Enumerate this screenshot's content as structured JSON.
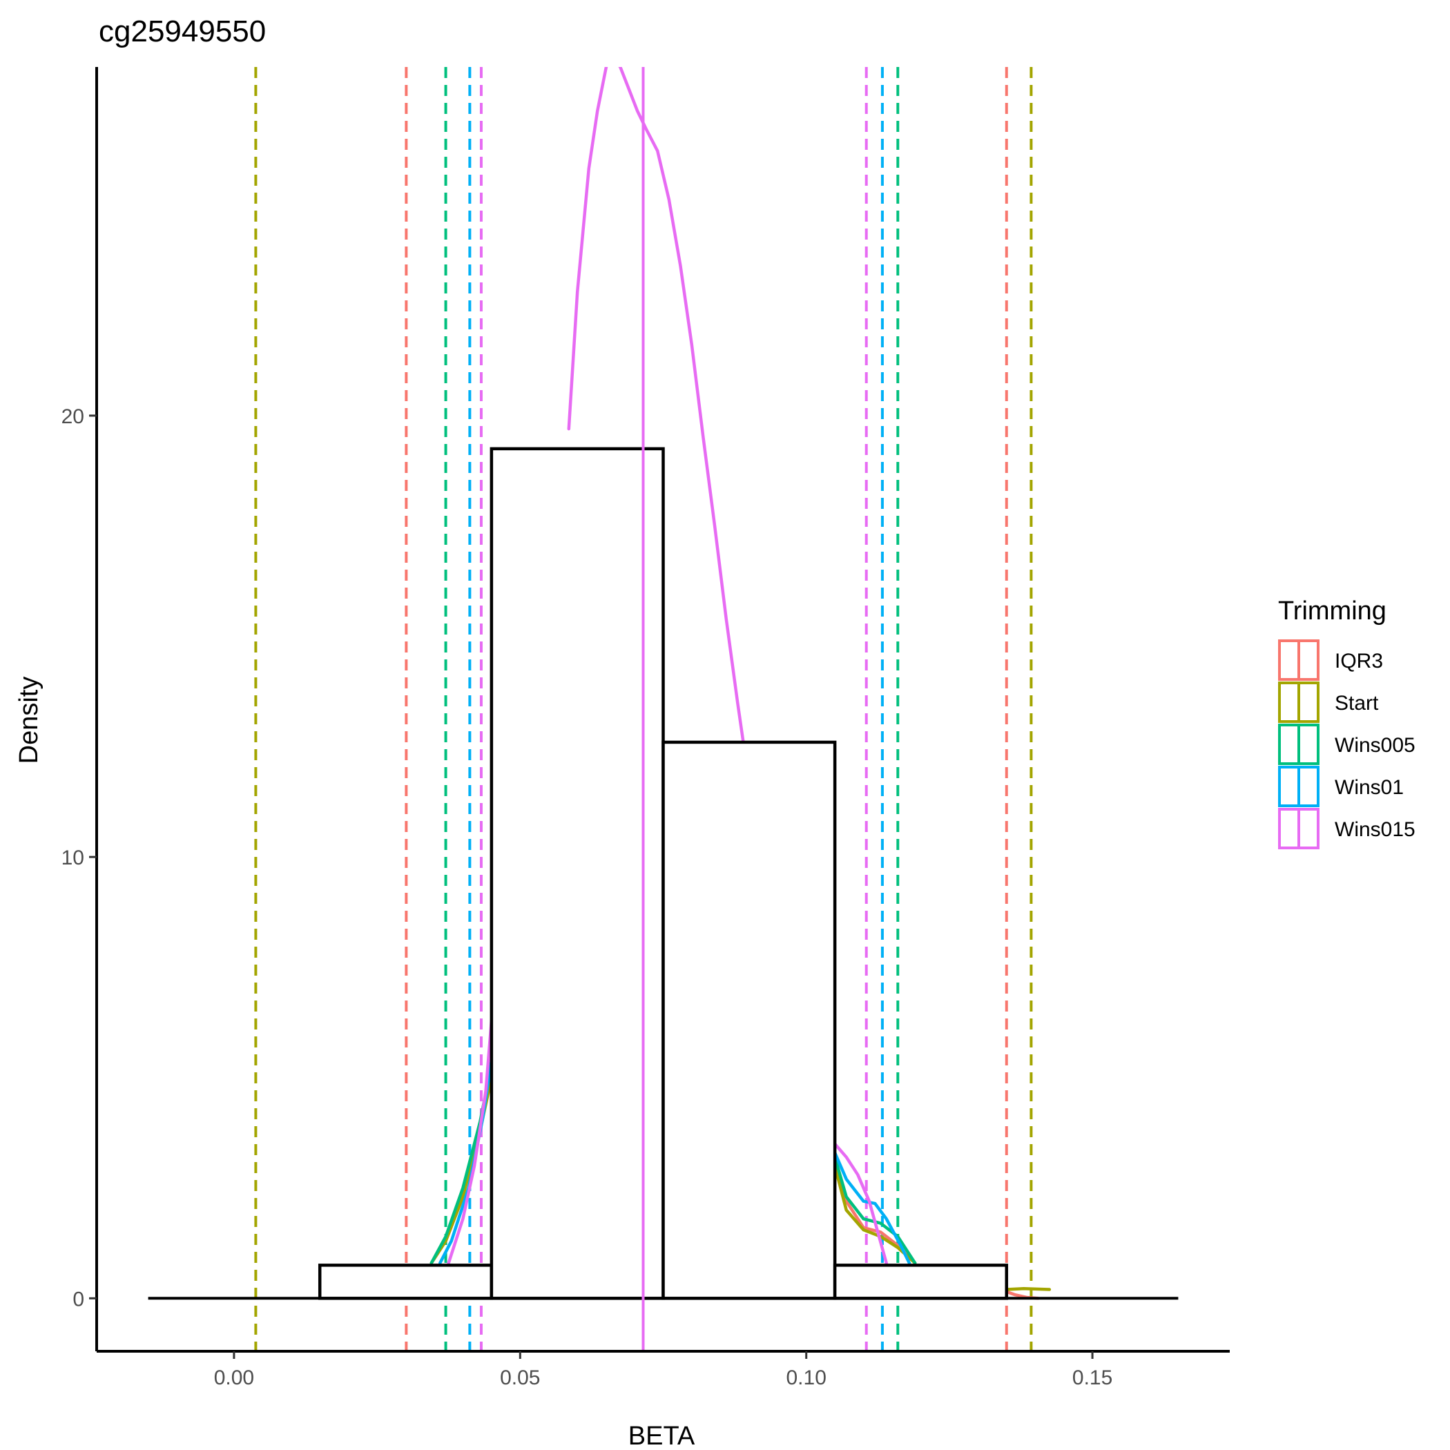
{
  "chart_data": {
    "type": "histogram",
    "title": "cg25949550",
    "xlabel": "BETA",
    "ylabel": "Density",
    "xlim": [
      -0.024,
      0.174
    ],
    "ylim": [
      -1.2,
      27.9
    ],
    "x_ticks": [
      {
        "value": 0.0,
        "label": "0.00"
      },
      {
        "value": 0.05,
        "label": "0.05"
      },
      {
        "value": 0.1,
        "label": "0.10"
      },
      {
        "value": 0.15,
        "label": "0.15"
      }
    ],
    "y_ticks": [
      {
        "value": 0,
        "label": "0"
      },
      {
        "value": 10,
        "label": "10"
      },
      {
        "value": 20,
        "label": "20"
      }
    ],
    "baseline": {
      "x_start": -0.015,
      "x_end": 0.165
    },
    "histogram_bins": [
      {
        "x0": 0.015,
        "x1": 0.045,
        "density": 0.75
      },
      {
        "x0": 0.045,
        "x1": 0.075,
        "density": 19.25
      },
      {
        "x0": 0.075,
        "x1": 0.105,
        "density": 12.6
      },
      {
        "x0": 0.105,
        "x1": 0.135,
        "density": 0.75
      }
    ],
    "legend": {
      "title": "Trimming",
      "position": "right",
      "entries": [
        {
          "name": "IQR3",
          "color": "#F8766D"
        },
        {
          "name": "Start",
          "color": "#A3A500"
        },
        {
          "name": "Wins005",
          "color": "#00BF7D"
        },
        {
          "name": "Wins01",
          "color": "#00B0F6"
        },
        {
          "name": "Wins015",
          "color": "#E76BF3"
        }
      ]
    },
    "mean_line": {
      "x": 0.0715,
      "color": "#E76BF3"
    },
    "threshold_lines": [
      {
        "series": "Start",
        "x": 0.0038,
        "color": "#A3A500"
      },
      {
        "series": "Start",
        "x": 0.1393,
        "color": "#A3A500"
      },
      {
        "series": "IQR3",
        "x": 0.0301,
        "color": "#F8766D"
      },
      {
        "series": "IQR3",
        "x": 0.135,
        "color": "#F8766D"
      },
      {
        "series": "Wins005",
        "x": 0.037,
        "color": "#00BF7D"
      },
      {
        "series": "Wins005",
        "x": 0.116,
        "color": "#00BF7D"
      },
      {
        "series": "Wins01",
        "x": 0.0412,
        "color": "#00B0F6"
      },
      {
        "series": "Wins01",
        "x": 0.1133,
        "color": "#00B0F6"
      },
      {
        "series": "Wins015",
        "x": 0.0432,
        "color": "#E76BF3"
      },
      {
        "series": "Wins015",
        "x": 0.1105,
        "color": "#E76BF3"
      }
    ],
    "density_series": [
      {
        "name": "IQR3",
        "color": "#F8766D",
        "segments": [
          [
            [
              0.0345,
              0.8
            ],
            [
              0.037,
              1.3
            ],
            [
              0.04,
              2.3
            ],
            [
              0.043,
              3.9
            ],
            [
              0.045,
              5.2
            ]
          ],
          [
            [
              0.105,
              3.1
            ],
            [
              0.107,
              2.2
            ],
            [
              0.11,
              1.6
            ],
            [
              0.113,
              1.5
            ],
            [
              0.116,
              1.2
            ],
            [
              0.119,
              0.8
            ]
          ],
          [
            [
              0.135,
              0.15
            ],
            [
              0.1365,
              0.08
            ],
            [
              0.1385,
              0.02
            ],
            [
              0.1405,
              0.0
            ]
          ]
        ]
      },
      {
        "name": "Start",
        "color": "#A3A500",
        "segments": [
          [
            [
              0.0345,
              0.8
            ],
            [
              0.037,
              1.3
            ],
            [
              0.04,
              2.3
            ],
            [
              0.043,
              3.8
            ],
            [
              0.045,
              5.0
            ]
          ],
          [
            [
              0.105,
              3.0
            ],
            [
              0.107,
              2.0
            ],
            [
              0.11,
              1.55
            ],
            [
              0.113,
              1.4
            ],
            [
              0.116,
              1.15
            ],
            [
              0.119,
              0.8
            ]
          ],
          [
            [
              0.135,
              0.2
            ],
            [
              0.138,
              0.22
            ],
            [
              0.1425,
              0.2
            ]
          ]
        ]
      },
      {
        "name": "Wins005",
        "color": "#00BF7D",
        "segments": [
          [
            [
              0.0345,
              0.8
            ],
            [
              0.037,
              1.4
            ],
            [
              0.04,
              2.5
            ],
            [
              0.043,
              4.0
            ],
            [
              0.045,
              5.3
            ]
          ],
          [
            [
              0.105,
              3.2
            ],
            [
              0.107,
              2.3
            ],
            [
              0.11,
              1.8
            ],
            [
              0.113,
              1.7
            ],
            [
              0.116,
              1.4
            ],
            [
              0.119,
              0.8
            ]
          ]
        ]
      },
      {
        "name": "Wins01",
        "color": "#00B0F6",
        "segments": [
          [
            [
              0.036,
              0.8
            ],
            [
              0.038,
              1.3
            ],
            [
              0.041,
              2.5
            ],
            [
              0.0435,
              4.1
            ],
            [
              0.045,
              5.4
            ]
          ],
          [
            [
              0.105,
              3.3
            ],
            [
              0.107,
              2.7
            ],
            [
              0.11,
              2.2
            ],
            [
              0.112,
              2.15
            ],
            [
              0.114,
              1.8
            ],
            [
              0.1165,
              1.2
            ],
            [
              0.118,
              0.8
            ]
          ]
        ]
      },
      {
        "name": "Wins015",
        "color": "#E76BF3",
        "segments": [
          [
            [
              0.0375,
              0.8
            ],
            [
              0.04,
              1.8
            ],
            [
              0.042,
              3.0
            ],
            [
              0.044,
              4.7
            ],
            [
              0.045,
              6.3
            ]
          ],
          [
            [
              0.0585,
              19.7
            ],
            [
              0.06,
              22.8
            ],
            [
              0.062,
              25.6
            ],
            [
              0.0635,
              26.9
            ],
            [
              0.0655,
              28.2
            ],
            [
              0.0675,
              27.9
            ],
            [
              0.069,
              27.4
            ],
            [
              0.0705,
              26.9
            ],
            [
              0.072,
              26.5
            ],
            [
              0.074,
              26.0
            ],
            [
              0.076,
              24.9
            ],
            [
              0.078,
              23.4
            ],
            [
              0.08,
              21.6
            ],
            [
              0.082,
              19.5
            ],
            [
              0.084,
              17.5
            ],
            [
              0.086,
              15.4
            ],
            [
              0.088,
              13.5
            ],
            [
              0.089,
              12.6
            ]
          ],
          [
            [
              0.105,
              3.5
            ],
            [
              0.107,
              3.2
            ],
            [
              0.109,
              2.8
            ],
            [
              0.111,
              2.2
            ],
            [
              0.1125,
              1.5
            ],
            [
              0.114,
              0.8
            ]
          ]
        ]
      }
    ]
  }
}
